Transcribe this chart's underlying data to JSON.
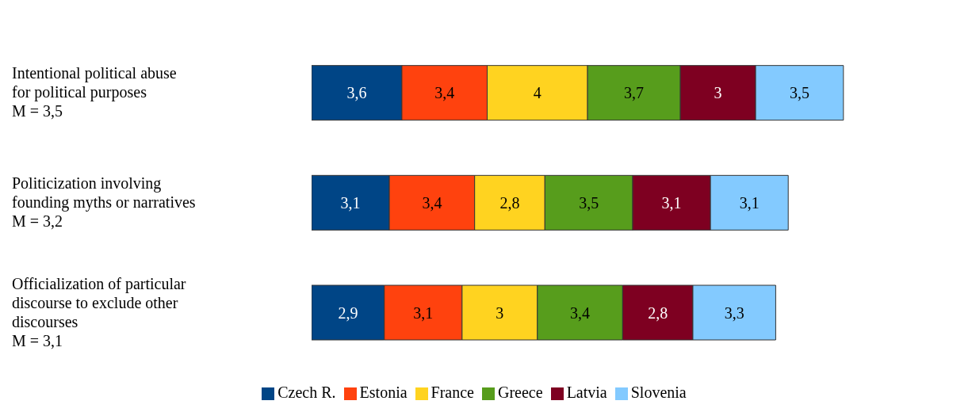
{
  "chart_data": {
    "type": "bar",
    "orientation": "horizontal",
    "stacked": true,
    "legend": "bottom",
    "grid": false,
    "categories": [
      "Intentional political abuse\nfor political purposes\nM = 3,5",
      "Politicization involving\nfounding myths or narratives\nM = 3,2",
      "Officialization of particular\ndiscourse to exclude other\ndiscourses\nM = 3,1"
    ],
    "series": [
      {
        "name": "Czech R.",
        "color": "#004586",
        "values": [
          3.6,
          3.1,
          2.9
        ],
        "value_labels": [
          "3,6",
          "3,1",
          "2,9"
        ]
      },
      {
        "name": "Estonia",
        "color": "#ff420e",
        "values": [
          3.4,
          3.4,
          3.1
        ],
        "value_labels": [
          "3,4",
          "3,4",
          "3,1"
        ]
      },
      {
        "name": "France",
        "color": "#ffd320",
        "values": [
          4,
          2.8,
          3
        ],
        "value_labels": [
          "4",
          "2,8",
          "3"
        ]
      },
      {
        "name": "Greece",
        "color": "#579d1c",
        "values": [
          3.7,
          3.5,
          3.4
        ],
        "value_labels": [
          "3,7",
          "3,5",
          "3,4"
        ]
      },
      {
        "name": "Latvia",
        "color": "#7e0021",
        "values": [
          3,
          3.1,
          2.8
        ],
        "value_labels": [
          "3",
          "3,1",
          "2,8"
        ]
      },
      {
        "name": "Slovenia",
        "color": "#83caff",
        "values": [
          3.5,
          3.1,
          3.3
        ],
        "value_labels": [
          "3,5",
          "3,1",
          "3,3"
        ]
      }
    ]
  }
}
